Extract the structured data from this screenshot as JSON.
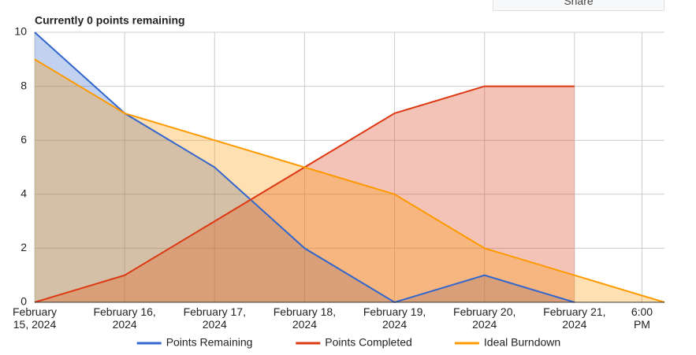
{
  "share_button": "Share",
  "chart_data": {
    "type": "area",
    "title": "Currently 0 points remaining",
    "x": [
      "2024-02-15T00:00",
      "2024-02-16T00:00",
      "2024-02-17T00:00",
      "2024-02-18T00:00",
      "2024-02-19T00:00",
      "2024-02-20T00:00",
      "2024-02-21T00:00",
      "2024-02-22T00:00"
    ],
    "series": [
      {
        "name": "Points Remaining",
        "color": "#3366cc",
        "values": [
          10,
          7,
          5,
          2,
          0,
          1,
          0,
          null
        ]
      },
      {
        "name": "Points Completed",
        "color": "#dc3912",
        "values": [
          0,
          1,
          3,
          5,
          7,
          8,
          8,
          null
        ]
      },
      {
        "name": "Ideal Burndown",
        "color": "#ff9900",
        "values": [
          9,
          7,
          6,
          5,
          4,
          2,
          1,
          0
        ]
      }
    ],
    "xlim": [
      "2024-02-15T00:00",
      "2024-02-22T00:00"
    ],
    "xticks": [
      {
        "value": "2024-02-15T00:00",
        "label": "February\n15, 2024"
      },
      {
        "value": "2024-02-16T00:00",
        "label": "February 16,\n2024"
      },
      {
        "value": "2024-02-17T00:00",
        "label": "February 17,\n2024"
      },
      {
        "value": "2024-02-18T00:00",
        "label": "February 18,\n2024"
      },
      {
        "value": "2024-02-19T00:00",
        "label": "February 19,\n2024"
      },
      {
        "value": "2024-02-20T00:00",
        "label": "February 20,\n2024"
      },
      {
        "value": "2024-02-21T00:00",
        "label": "February 21,\n2024"
      },
      {
        "value": "2024-02-21T18:00",
        "label": "6:00\nPM"
      }
    ],
    "ylim": [
      0,
      10
    ],
    "yticks": [
      0,
      2,
      4,
      6,
      8,
      10
    ],
    "grid": true,
    "fill_opacity": 0.3,
    "legend": "bottom"
  }
}
